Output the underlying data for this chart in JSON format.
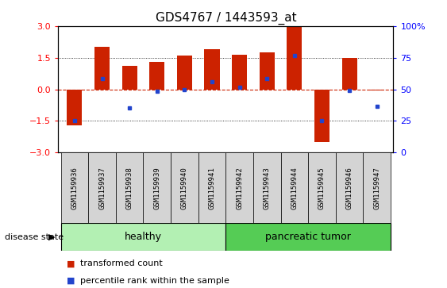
{
  "title": "GDS4767 / 1443593_at",
  "samples": [
    "GSM1159936",
    "GSM1159937",
    "GSM1159938",
    "GSM1159939",
    "GSM1159940",
    "GSM1159941",
    "GSM1159942",
    "GSM1159943",
    "GSM1159944",
    "GSM1159945",
    "GSM1159946",
    "GSM1159947"
  ],
  "bar_values": [
    -1.7,
    2.0,
    1.1,
    1.3,
    1.6,
    1.9,
    1.65,
    1.75,
    3.0,
    -2.5,
    1.5,
    -0.05
  ],
  "dot_values": [
    -1.5,
    0.5,
    -0.9,
    -0.1,
    0.0,
    0.35,
    0.1,
    0.5,
    1.6,
    -1.5,
    -0.05,
    -0.8
  ],
  "healthy_count": 6,
  "tumor_count": 6,
  "group_labels": [
    "healthy",
    "pancreatic tumor"
  ],
  "bar_color": "#cc2200",
  "dot_color": "#2244cc",
  "ylim": [
    -3,
    3
  ],
  "yticks_left": [
    -3,
    -1.5,
    0,
    1.5,
    3
  ],
  "yticks_right": [
    0,
    25,
    50,
    75,
    100
  ],
  "ytick_labels_right": [
    "0",
    "25",
    "50",
    "75",
    "100%"
  ],
  "healthy_color": "#b3f0b3",
  "tumor_color": "#55cc55",
  "sample_box_color": "#d4d4d4",
  "disease_state_label": "disease state",
  "legend_bar_label": "transformed count",
  "legend_dot_label": "percentile rank within the sample",
  "title_fontsize": 11,
  "tick_fontsize": 8,
  "sample_fontsize": 6.5,
  "group_fontsize": 9,
  "legend_fontsize": 8
}
